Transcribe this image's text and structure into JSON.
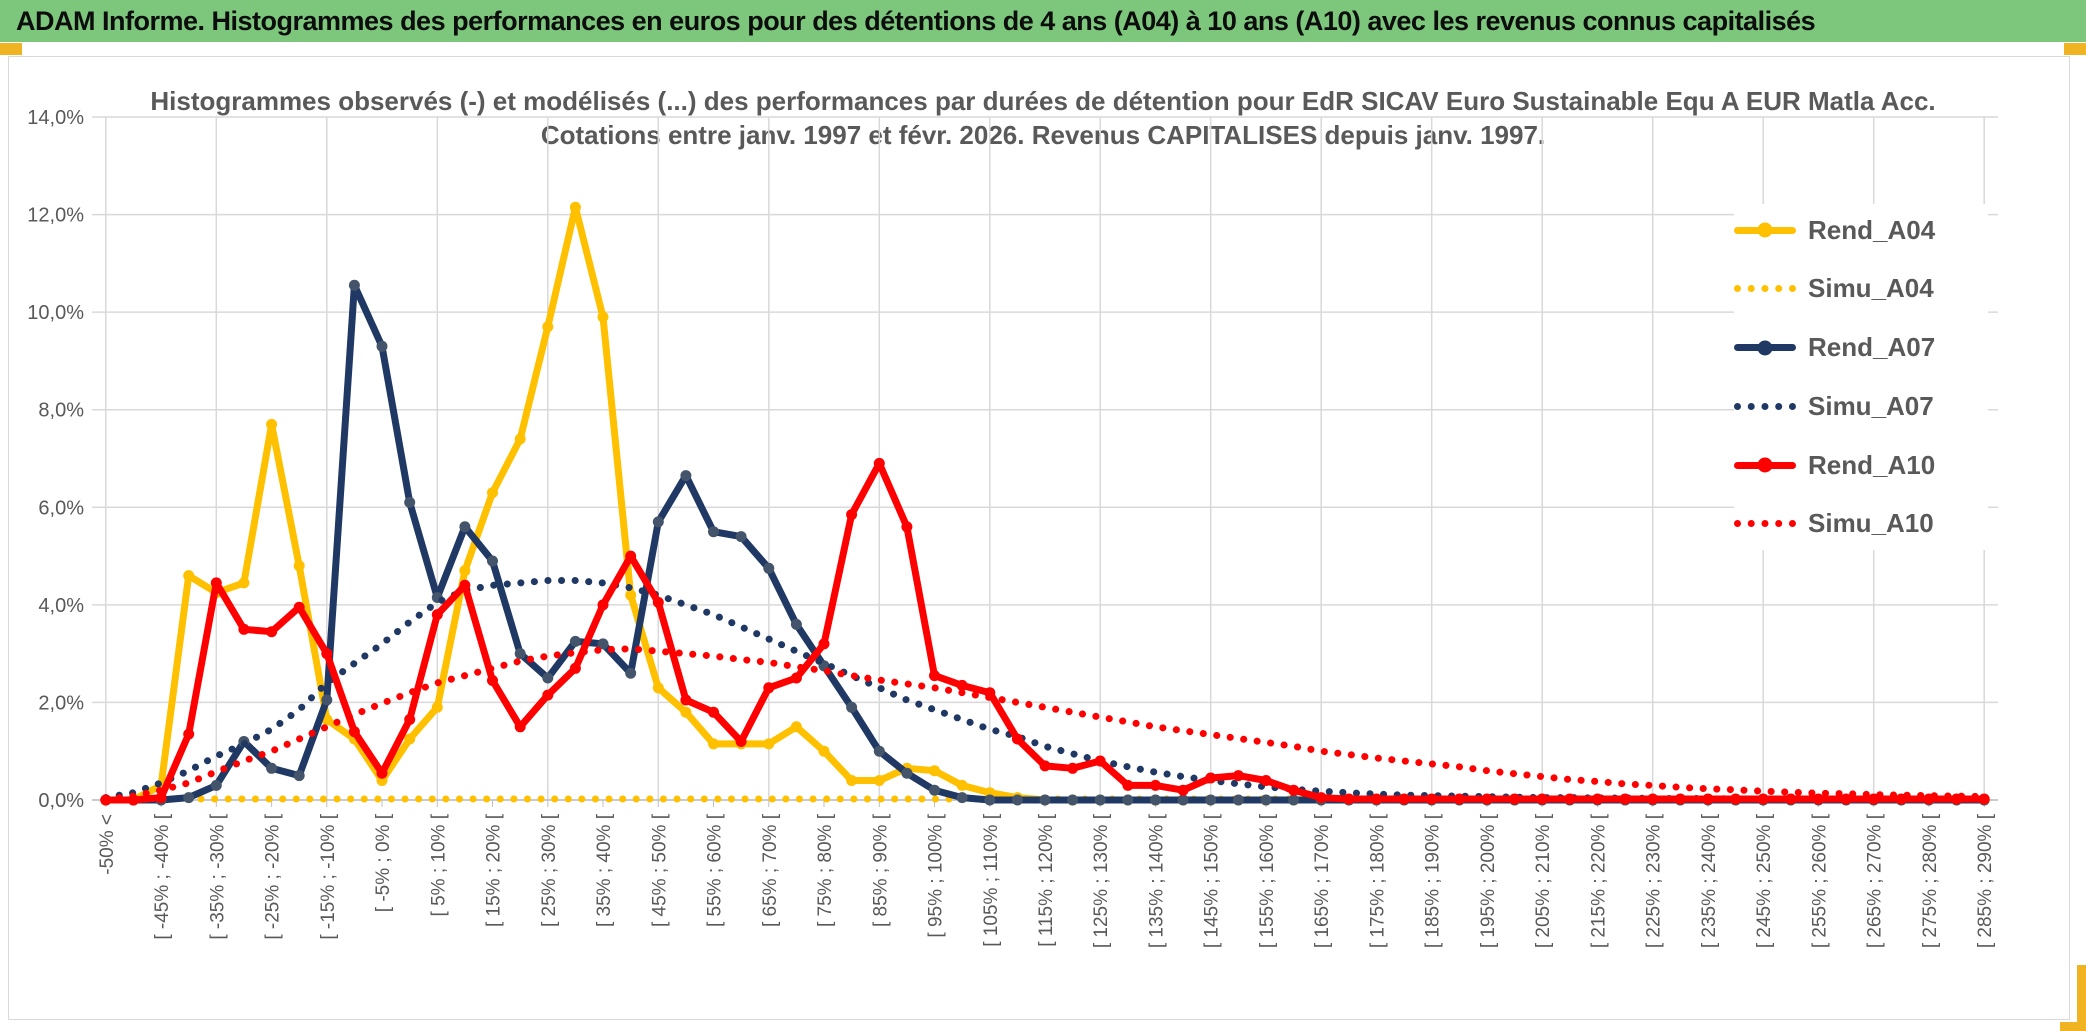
{
  "header": {
    "title": "ADAM Informe. Histogrammes des performances en euros pour des détentions de 4 ans (A04) à 10 ans (A10) avec les revenus connus capitalisés"
  },
  "colors": {
    "header_bg": "#7dc77d",
    "gold": "#FFC000",
    "navy": "#1F3864",
    "navy_marker_fill": "#44546A",
    "red": "#FF0000",
    "grid": "#D9D9D9",
    "axis_line": "#BFBFBF",
    "axis_text": "#595959",
    "accent_gold": "#F0B321"
  },
  "chart": {
    "title_line1": "Histogrammes observés (-) et modélisés (...) des performances par durées de détention pour EdR SICAV Euro Sustainable Equ A EUR Matla Acc.",
    "title_line2": "Cotations entre janv. 1997 et févr. 2026. Revenus CAPITALISES depuis janv. 1997.",
    "y_axis": {
      "tick_labels": [
        "14,0%",
        "12,0%",
        "10,0%",
        "8,0%",
        "6,0%",
        "4,0%",
        "2,0%",
        "0,0%"
      ]
    },
    "x_axis": {
      "tick_labels": [
        "-50% <",
        "[ -45% ; -40% [",
        "[ -35% ; -30% [",
        "[ -25% ; -20% [",
        "[ -15% ; -10% [",
        "[ -5% ; 0% [",
        "[ 5% ; 10% [",
        "[ 15% ; 20% [",
        "[ 25% ; 30% [",
        "[ 35% ; 40% [",
        "[ 45% ; 50% [",
        "[ 55% ; 60% [",
        "[ 65% ; 70% [",
        "[ 75% ; 80% [",
        "[ 85% ; 90% [",
        "[ 95% ; 100% [",
        "[ 105% ; 110% [",
        "[ 115% ; 120% [",
        "[ 125% ; 130% [",
        "[ 135% ; 140% [",
        "[ 145% ; 150% [",
        "[ 155% ; 160% [",
        "[ 165% ; 170% [",
        "[ 175% ; 180% [",
        "[ 185% ; 190% [",
        "[ 195% ; 200% [",
        "[ 205% ; 210% [",
        "[ 215% ; 220% [",
        "[ 225% ; 230% [",
        "[ 235% ; 240% [",
        "[ 245% ; 250% [",
        "[ 255% ; 260% [",
        "[ 265% ; 270% [",
        "[ 275% ; 280% [",
        "[ 285% ; 290% ["
      ]
    },
    "legend": {
      "items": [
        {
          "label": "Rend_A04",
          "color": "#FFC000",
          "style": "solid"
        },
        {
          "label": "Simu_A04",
          "color": "#FFC000",
          "style": "dotted"
        },
        {
          "label": "Rend_A07",
          "color": "#1F3864",
          "style": "solid"
        },
        {
          "label": "Simu_A07",
          "color": "#1F3864",
          "style": "dotted"
        },
        {
          "label": "Rend_A10",
          "color": "#FF0000",
          "style": "solid"
        },
        {
          "label": "Simu_A10",
          "color": "#FF0000",
          "style": "dotted"
        }
      ]
    }
  },
  "chart_data": {
    "type": "line",
    "title": "Histogrammes observés (-) et modélisés (...) des performances par durées de détention pour EdR SICAV Euro Sustainable Equ A EUR Matla Acc.",
    "subtitle": "Cotations entre janv. 1997 et févr. 2026. Revenus CAPITALISES depuis janv. 1997.",
    "xlabel": "",
    "ylabel": "",
    "ylim": [
      0,
      14
    ],
    "y_step": 2,
    "y_format": "0,0%",
    "grid": true,
    "legend_position": "right",
    "bin_count": 69,
    "bin_width_pct": 5,
    "first_bin_label": "-50% <",
    "x_tick_every_n_bins": 2,
    "x_gridline_every_n_bins": 4,
    "series": [
      {
        "name": "Rend_A04",
        "style": "solid",
        "color": "#FFC000",
        "values": [
          0,
          0,
          0.3,
          4.6,
          4.25,
          4.45,
          7.7,
          4.8,
          1.65,
          1.25,
          0.4,
          1.25,
          1.9,
          4.7,
          6.3,
          7.4,
          9.7,
          12.15,
          9.9,
          4.2,
          2.3,
          1.8,
          1.15,
          1.15,
          1.15,
          1.5,
          1.0,
          0.4,
          0.4,
          0.65,
          0.6,
          0.3,
          0.15,
          0.05,
          0,
          0,
          0,
          0,
          0,
          0,
          0,
          0,
          0,
          0,
          0,
          0,
          0,
          0,
          0,
          0,
          0,
          0,
          0,
          0,
          0,
          0,
          0,
          0,
          0,
          0,
          0,
          0,
          0,
          0,
          0,
          0,
          0,
          0,
          0
        ]
      },
      {
        "name": "Simu_A04",
        "style": "dotted",
        "color": "#FFC000",
        "values": [
          0.02,
          0.02,
          0.02,
          0.02,
          0.02,
          0.02,
          0.02,
          0.02,
          0.02,
          0.02,
          0.02,
          0.02,
          0.02,
          0.02,
          0.02,
          0.02,
          0.02,
          0.02,
          0.02,
          0.02,
          0.02,
          0.02,
          0.02,
          0.02,
          0.02,
          0.02,
          0.02,
          0.02,
          0.02,
          0.02,
          0.02,
          0.02,
          0.02,
          0.02,
          0.02,
          0.02,
          0.02,
          0.02,
          0.02,
          0.02,
          0.02,
          0.02,
          0.02,
          0.02,
          0.02,
          0.02,
          0.02,
          0.02,
          0.02,
          0.02,
          0.02,
          0.02,
          0.02,
          0.02,
          0.02,
          0.02,
          0.02,
          0.02,
          0.02,
          0.02,
          0.02,
          0.02,
          0.02,
          0.02,
          0.02,
          0.02,
          0.02,
          0.02,
          0.02
        ]
      },
      {
        "name": "Rend_A07",
        "style": "solid",
        "color": "#1F3864",
        "marker_fill": "#44546A",
        "values": [
          0,
          0,
          0,
          0.05,
          0.3,
          1.2,
          0.65,
          0.5,
          2.05,
          10.55,
          9.3,
          6.1,
          4.15,
          5.6,
          4.9,
          3.0,
          2.5,
          3.25,
          3.2,
          2.6,
          5.7,
          6.65,
          5.5,
          5.4,
          4.75,
          3.6,
          2.75,
          1.9,
          1.0,
          0.55,
          0.2,
          0.05,
          0,
          0,
          0,
          0,
          0,
          0,
          0,
          0,
          0,
          0,
          0,
          0,
          0,
          0,
          0,
          0,
          0,
          0,
          0,
          0,
          0,
          0,
          0,
          0,
          0,
          0,
          0,
          0,
          0,
          0,
          0,
          0,
          0,
          0,
          0,
          0,
          0
        ]
      },
      {
        "name": "Simu_A07",
        "style": "dotted",
        "color": "#1F3864",
        "values": [
          0.05,
          0.15,
          0.35,
          0.6,
          0.9,
          1.15,
          1.45,
          1.85,
          2.4,
          2.8,
          3.2,
          3.65,
          4.05,
          4.3,
          4.4,
          4.45,
          4.5,
          4.5,
          4.45,
          4.35,
          4.2,
          4.0,
          3.8,
          3.55,
          3.3,
          3.05,
          2.8,
          2.55,
          2.3,
          2.05,
          1.85,
          1.65,
          1.45,
          1.3,
          1.1,
          0.95,
          0.8,
          0.68,
          0.57,
          0.48,
          0.4,
          0.33,
          0.27,
          0.22,
          0.18,
          0.15,
          0.12,
          0.1,
          0.09,
          0.08,
          0.07,
          0.06,
          0.05,
          0.05,
          0.04,
          0.04,
          0.03,
          0.03,
          0.03,
          0.02,
          0.02,
          0.02,
          0.02,
          0.02,
          0.02,
          0.02,
          0.02,
          0.02,
          0.02
        ]
      },
      {
        "name": "Rend_A10",
        "style": "solid",
        "color": "#FF0000",
        "values": [
          0,
          0,
          0.05,
          1.35,
          4.45,
          3.5,
          3.45,
          3.95,
          3.0,
          1.4,
          0.55,
          1.65,
          3.8,
          4.4,
          2.45,
          1.5,
          2.15,
          2.7,
          4.0,
          5.0,
          4.05,
          2.05,
          1.8,
          1.2,
          2.3,
          2.5,
          3.2,
          5.85,
          6.9,
          5.6,
          2.55,
          2.35,
          2.2,
          1.25,
          0.7,
          0.65,
          0.8,
          0.3,
          0.3,
          0.2,
          0.45,
          0.5,
          0.4,
          0.2,
          0.05,
          0.02,
          0.02,
          0.02,
          0.02,
          0.02,
          0.02,
          0.02,
          0.02,
          0.02,
          0.02,
          0.02,
          0.02,
          0.02,
          0.02,
          0.02,
          0.02,
          0.02,
          0.02,
          0.02,
          0.02,
          0.02,
          0.02,
          0.02,
          0.02
        ]
      },
      {
        "name": "Simu_A10",
        "style": "dotted",
        "color": "#FF0000",
        "values": [
          0.02,
          0.08,
          0.2,
          0.35,
          0.58,
          0.8,
          1.0,
          1.25,
          1.5,
          1.75,
          1.98,
          2.2,
          2.4,
          2.55,
          2.7,
          2.85,
          2.95,
          3.02,
          3.08,
          3.1,
          3.05,
          3.0,
          2.95,
          2.88,
          2.82,
          2.73,
          2.65,
          2.55,
          2.46,
          2.38,
          2.3,
          2.2,
          2.1,
          2.0,
          1.9,
          1.8,
          1.7,
          1.6,
          1.5,
          1.42,
          1.34,
          1.26,
          1.18,
          1.1,
          1.0,
          0.93,
          0.86,
          0.8,
          0.74,
          0.68,
          0.6,
          0.54,
          0.48,
          0.42,
          0.38,
          0.33,
          0.3,
          0.26,
          0.23,
          0.21,
          0.18,
          0.16,
          0.14,
          0.13,
          0.11,
          0.1,
          0.09,
          0.08,
          0.07
        ]
      }
    ]
  }
}
